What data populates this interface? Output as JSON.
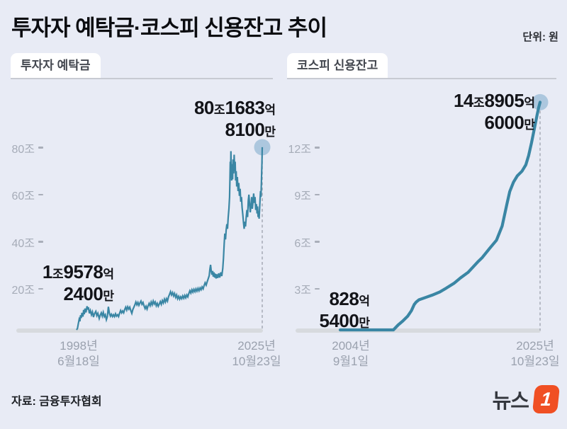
{
  "header": {
    "title": "투자자 예탁금·코스피 신용잔고 추이",
    "unit_note": "단위: 원"
  },
  "footer": {
    "source": "자료: 금융투자협회",
    "logo_text": "뉴스",
    "logo_number": "1"
  },
  "colors": {
    "background": "#e8ebf5",
    "line": "#3a86a4",
    "dot": "#a5c3dc",
    "baseline_bar": "#d7dade",
    "dashed_guide": "#a9aeb9",
    "tick_text": "#a6acb8",
    "annotation_text": "#131419",
    "logo_orange": "#f04f23"
  },
  "chart_data": [
    {
      "type": "line",
      "title": "투자자 예탁금",
      "unit": "조원",
      "xlim": [
        1998.46,
        2025.81
      ],
      "ylim": [
        0,
        88
      ],
      "x_start_label": [
        "1998년",
        "6월18일"
      ],
      "x_end_label": [
        "2025년",
        "10월23일"
      ],
      "y_ticks": [
        {
          "label": "80조",
          "value": 80
        },
        {
          "label": "60조",
          "value": 60
        },
        {
          "label": "40조",
          "value": 40
        },
        {
          "label": "20조",
          "value": 20
        }
      ],
      "start_value_label": {
        "lines": [
          [
            [
              "1",
              "n"
            ],
            [
              "조",
              "u"
            ],
            [
              "9578",
              "n"
            ],
            [
              "억",
              "u"
            ]
          ],
          [
            [
              "2400",
              "n"
            ],
            [
              "만",
              "u"
            ]
          ]
        ]
      },
      "end_value_label": {
        "lines": [
          [
            [
              "80",
              "n"
            ],
            [
              "조",
              "u"
            ],
            [
              "1683",
              "n"
            ],
            [
              "억",
              "u"
            ]
          ],
          [
            [
              "8100",
              "n"
            ],
            [
              "만",
              "u"
            ]
          ]
        ]
      },
      "series": [
        [
          1998.46,
          1.96
        ],
        [
          1998.6,
          3.2
        ],
        [
          1998.72,
          5.2
        ],
        [
          1998.85,
          7.0
        ],
        [
          1998.95,
          6.2
        ],
        [
          1999.05,
          8.8
        ],
        [
          1999.15,
          7.6
        ],
        [
          1999.25,
          9.8
        ],
        [
          1999.4,
          8.2
        ],
        [
          1999.5,
          11.0
        ],
        [
          1999.6,
          9.2
        ],
        [
          1999.7,
          11.6
        ],
        [
          1999.85,
          10.0
        ],
        [
          2000.0,
          12.6
        ],
        [
          2000.1,
          11.2
        ],
        [
          2000.2,
          12.2
        ],
        [
          2000.35,
          9.6
        ],
        [
          2000.5,
          10.8
        ],
        [
          2000.65,
          9.0
        ],
        [
          2000.8,
          10.2
        ],
        [
          2000.95,
          8.0
        ],
        [
          2001.1,
          9.4
        ],
        [
          2001.3,
          10.4
        ],
        [
          2001.45,
          8.6
        ],
        [
          2001.6,
          9.6
        ],
        [
          2001.8,
          7.4
        ],
        [
          2001.95,
          8.8
        ],
        [
          2002.1,
          9.8
        ],
        [
          2002.25,
          8.4
        ],
        [
          2002.4,
          10.0
        ],
        [
          2002.55,
          8.2
        ],
        [
          2002.7,
          9.0
        ],
        [
          2002.85,
          6.9
        ],
        [
          2003.0,
          8.2
        ],
        [
          2003.15,
          12.4
        ],
        [
          2003.3,
          9.6
        ],
        [
          2003.45,
          8.4
        ],
        [
          2003.6,
          9.2
        ],
        [
          2003.75,
          8.2
        ],
        [
          2003.9,
          9.0
        ],
        [
          2004.05,
          8.2
        ],
        [
          2004.2,
          9.4
        ],
        [
          2004.35,
          8.4
        ],
        [
          2004.5,
          9.0
        ],
        [
          2004.65,
          8.2
        ],
        [
          2004.8,
          9.6
        ],
        [
          2004.95,
          10.8
        ],
        [
          2005.1,
          9.8
        ],
        [
          2005.25,
          10.6
        ],
        [
          2005.4,
          9.8
        ],
        [
          2005.55,
          11.2
        ],
        [
          2005.7,
          12.2
        ],
        [
          2005.85,
          11.0
        ],
        [
          2006.0,
          12.4
        ],
        [
          2006.15,
          11.4
        ],
        [
          2006.3,
          12.2
        ],
        [
          2006.45,
          10.8
        ],
        [
          2006.6,
          9.6
        ],
        [
          2006.75,
          11.2
        ],
        [
          2006.9,
          12.2
        ],
        [
          2007.05,
          13.2
        ],
        [
          2007.2,
          14.4
        ],
        [
          2007.35,
          13.2
        ],
        [
          2007.5,
          14.2
        ],
        [
          2007.65,
          13.0
        ],
        [
          2007.8,
          14.0
        ],
        [
          2007.95,
          14.8
        ],
        [
          2008.1,
          13.4
        ],
        [
          2008.25,
          14.2
        ],
        [
          2008.4,
          12.8
        ],
        [
          2008.55,
          11.6
        ],
        [
          2008.7,
          12.6
        ],
        [
          2008.85,
          11.4
        ],
        [
          2009.0,
          12.8
        ],
        [
          2009.15,
          13.8
        ],
        [
          2009.3,
          12.8
        ],
        [
          2009.45,
          14.4
        ],
        [
          2009.6,
          13.2
        ],
        [
          2009.75,
          14.8
        ],
        [
          2009.9,
          13.6
        ],
        [
          2010.05,
          14.4
        ],
        [
          2010.2,
          12.8
        ],
        [
          2010.35,
          13.8
        ],
        [
          2010.5,
          12.6
        ],
        [
          2010.65,
          13.6
        ],
        [
          2010.8,
          14.6
        ],
        [
          2010.95,
          13.4
        ],
        [
          2011.1,
          15.0
        ],
        [
          2011.25,
          14.0
        ],
        [
          2011.4,
          15.6
        ],
        [
          2011.55,
          14.4
        ],
        [
          2011.7,
          15.8
        ],
        [
          2011.85,
          14.8
        ],
        [
          2012.0,
          16.6
        ],
        [
          2012.15,
          17.6
        ],
        [
          2012.3,
          18.8
        ],
        [
          2012.45,
          17.4
        ],
        [
          2012.6,
          18.4
        ],
        [
          2012.75,
          17.0
        ],
        [
          2012.9,
          18.0
        ],
        [
          2013.05,
          16.4
        ],
        [
          2013.2,
          17.4
        ],
        [
          2013.35,
          15.8
        ],
        [
          2013.5,
          16.8
        ],
        [
          2013.65,
          15.6
        ],
        [
          2013.8,
          16.6
        ],
        [
          2013.95,
          15.8
        ],
        [
          2014.1,
          17.0
        ],
        [
          2014.25,
          16.0
        ],
        [
          2014.4,
          17.2
        ],
        [
          2014.55,
          16.2
        ],
        [
          2014.7,
          17.4
        ],
        [
          2014.85,
          16.6
        ],
        [
          2015.0,
          18.0
        ],
        [
          2015.15,
          19.2
        ],
        [
          2015.3,
          18.2
        ],
        [
          2015.45,
          19.6
        ],
        [
          2015.6,
          18.6
        ],
        [
          2015.75,
          19.8
        ],
        [
          2015.9,
          18.8
        ],
        [
          2016.05,
          20.0
        ],
        [
          2016.2,
          19.0
        ],
        [
          2016.35,
          20.2
        ],
        [
          2016.5,
          19.2
        ],
        [
          2016.65,
          20.4
        ],
        [
          2016.8,
          19.6
        ],
        [
          2016.95,
          20.8
        ],
        [
          2017.1,
          20.0
        ],
        [
          2017.25,
          21.4
        ],
        [
          2017.4,
          22.6
        ],
        [
          2017.55,
          21.6
        ],
        [
          2017.7,
          23.0
        ],
        [
          2017.85,
          24.2
        ],
        [
          2018.0,
          25.6
        ],
        [
          2018.1,
          28.2
        ],
        [
          2018.2,
          30.2
        ],
        [
          2018.3,
          27.4
        ],
        [
          2018.4,
          26.0
        ],
        [
          2018.5,
          27.6
        ],
        [
          2018.6,
          25.2
        ],
        [
          2018.7,
          27.0
        ],
        [
          2018.8,
          24.8
        ],
        [
          2018.9,
          26.4
        ],
        [
          2019.0,
          24.4
        ],
        [
          2019.1,
          26.2
        ],
        [
          2019.25,
          24.6
        ],
        [
          2019.4,
          26.6
        ],
        [
          2019.55,
          24.8
        ],
        [
          2019.7,
          27.0
        ],
        [
          2019.85,
          25.4
        ],
        [
          2020.0,
          28.6
        ],
        [
          2020.1,
          33.0
        ],
        [
          2020.2,
          39.0
        ],
        [
          2020.3,
          43.5
        ],
        [
          2020.4,
          41.0
        ],
        [
          2020.5,
          45.0
        ],
        [
          2020.6,
          47.5
        ],
        [
          2020.7,
          45.5
        ],
        [
          2020.8,
          50.5
        ],
        [
          2020.9,
          54.0
        ],
        [
          2021.0,
          59.0
        ],
        [
          2021.05,
          66.0
        ],
        [
          2021.1,
          74.0
        ],
        [
          2021.15,
          68.5
        ],
        [
          2021.2,
          78.5
        ],
        [
          2021.25,
          71.0
        ],
        [
          2021.3,
          66.0
        ],
        [
          2021.38,
          73.0
        ],
        [
          2021.45,
          66.5
        ],
        [
          2021.52,
          75.0
        ],
        [
          2021.6,
          69.0
        ],
        [
          2021.68,
          77.0
        ],
        [
          2021.75,
          70.0
        ],
        [
          2021.82,
          74.0
        ],
        [
          2021.9,
          66.0
        ],
        [
          2021.97,
          70.0
        ],
        [
          2022.05,
          63.5
        ],
        [
          2022.15,
          67.5
        ],
        [
          2022.25,
          61.5
        ],
        [
          2022.35,
          65.0
        ],
        [
          2022.45,
          59.5
        ],
        [
          2022.55,
          62.5
        ],
        [
          2022.65,
          57.0
        ],
        [
          2022.75,
          59.0
        ],
        [
          2022.85,
          54.5
        ],
        [
          2022.95,
          51.5
        ],
        [
          2023.05,
          48.0
        ],
        [
          2023.15,
          45.5
        ],
        [
          2023.25,
          48.5
        ],
        [
          2023.35,
          46.5
        ],
        [
          2023.45,
          50.5
        ],
        [
          2023.55,
          53.5
        ],
        [
          2023.65,
          50.5
        ],
        [
          2023.75,
          57.5
        ],
        [
          2023.85,
          60.0
        ],
        [
          2023.95,
          55.5
        ],
        [
          2024.05,
          52.5
        ],
        [
          2024.15,
          55.5
        ],
        [
          2024.25,
          59.0
        ],
        [
          2024.35,
          54.0
        ],
        [
          2024.45,
          57.0
        ],
        [
          2024.55,
          60.5
        ],
        [
          2024.65,
          56.5
        ],
        [
          2024.75,
          59.0
        ],
        [
          2024.85,
          53.5
        ],
        [
          2024.95,
          56.0
        ],
        [
          2025.05,
          52.0
        ],
        [
          2025.12,
          55.0
        ],
        [
          2025.2,
          50.5
        ],
        [
          2025.28,
          53.0
        ],
        [
          2025.35,
          49.8
        ],
        [
          2025.42,
          54.0
        ],
        [
          2025.5,
          58.5
        ],
        [
          2025.56,
          61.5
        ],
        [
          2025.62,
          59.0
        ],
        [
          2025.68,
          65.0
        ],
        [
          2025.73,
          69.5
        ],
        [
          2025.77,
          73.5
        ],
        [
          2025.79,
          77.0
        ],
        [
          2025.81,
          80.1683
        ]
      ]
    },
    {
      "type": "line",
      "title": "코스피 신용잔고",
      "unit": "조원",
      "xlim": [
        2004.67,
        2025.81
      ],
      "ylim": [
        0,
        16
      ],
      "x_start_label": [
        "2004년",
        "9월1일"
      ],
      "x_end_label": [
        "2025년",
        "10월23일"
      ],
      "y_ticks": [
        {
          "label": "12조",
          "value": 12
        },
        {
          "label": "9조",
          "value": 9
        },
        {
          "label": "6조",
          "value": 6
        },
        {
          "label": "3조",
          "value": 3
        }
      ],
      "start_value_label": {
        "lines": [
          [
            [
              "828",
              "n"
            ],
            [
              "억",
              "u"
            ]
          ],
          [
            [
              "5400",
              "n"
            ],
            [
              "만",
              "u"
            ]
          ]
        ]
      },
      "end_value_label": {
        "lines": [
          [
            [
              "14",
              "n"
            ],
            [
              "조",
              "u"
            ],
            [
              "8905",
              "n"
            ],
            [
              "억",
              "u"
            ]
          ],
          [
            [
              "6000",
              "n"
            ],
            [
              "만",
              "u"
            ]
          ]
        ]
      },
      "series": [
        [
          2004.67,
          0.08
        ],
        [
          2005.3,
          0.1
        ],
        [
          2006.0,
          0.12
        ],
        [
          2006.8,
          0.14
        ],
        [
          2007.7,
          0.12
        ],
        [
          2008.5,
          0.14
        ],
        [
          2009.5,
          0.2
        ],
        [
          2010.3,
          0.35
        ],
        [
          2010.8,
          0.7
        ],
        [
          2011.3,
          0.95
        ],
        [
          2011.8,
          1.25
        ],
        [
          2012.2,
          1.6
        ],
        [
          2012.5,
          2.0
        ],
        [
          2012.7,
          2.15
        ],
        [
          2013.0,
          2.3
        ],
        [
          2013.7,
          2.45
        ],
        [
          2014.4,
          2.6
        ],
        [
          2015.2,
          2.8
        ],
        [
          2015.9,
          3.05
        ],
        [
          2016.7,
          3.35
        ],
        [
          2017.4,
          3.7
        ],
        [
          2018.2,
          4.05
        ],
        [
          2019.2,
          4.7
        ],
        [
          2019.7,
          5.0
        ],
        [
          2020.5,
          5.6
        ],
        [
          2021.2,
          6.1
        ],
        [
          2021.8,
          7.0
        ],
        [
          2022.3,
          8.4
        ],
        [
          2022.6,
          9.2
        ],
        [
          2023.0,
          9.8
        ],
        [
          2023.4,
          10.2
        ],
        [
          2023.9,
          10.5
        ],
        [
          2024.3,
          10.9
        ],
        [
          2024.6,
          11.5
        ],
        [
          2024.9,
          12.3
        ],
        [
          2025.2,
          13.2
        ],
        [
          2025.5,
          14.1
        ],
        [
          2025.66,
          14.55
        ],
        [
          2025.81,
          14.8906
        ]
      ]
    }
  ]
}
